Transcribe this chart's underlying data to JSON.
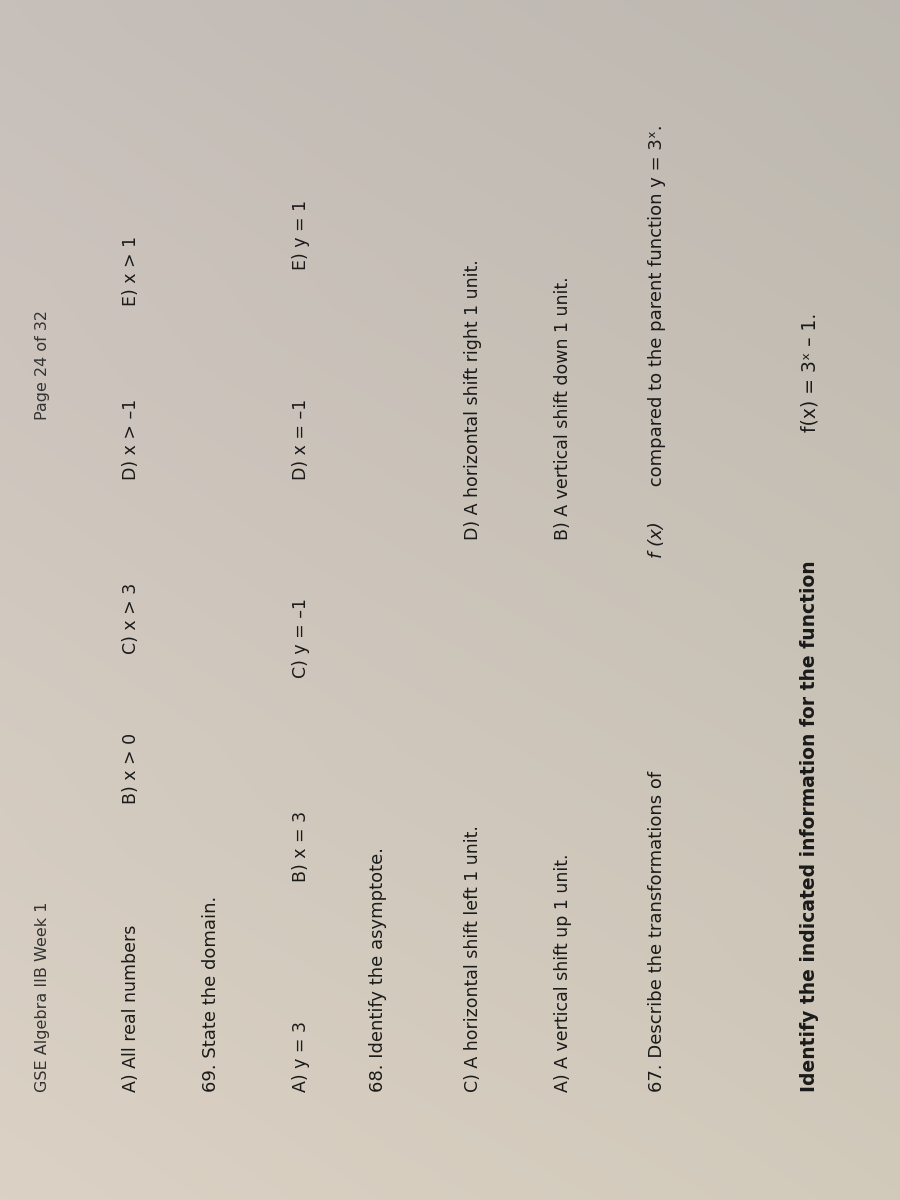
{
  "bg_color_tl": "#c8c4c0",
  "bg_color_tr": "#d0ccc8",
  "bg_color_bl": "#ddd5c8",
  "bg_color_br": "#cfc8c0",
  "text_color": "#1a1a1a",
  "rotation": 90,
  "title_bold": "Identify the indicated information for the function ",
  "title_func": "f(x) = 3ˣ – 1.",
  "q67_label": "67. Describe the transformations of ",
  "q67_func": "f (x)",
  "q67_rest": " compared to the parent function y = 3ˣ.",
  "q67_A": "A) A vertical shift up 1 unit.",
  "q67_B": "B) A vertical shift down 1 unit.",
  "q67_C": "C) A horizontal shift left 1 unit.",
  "q67_D": "D) A horizontal shift right 1 unit.",
  "q68_label": "68. Identify the asymptote.",
  "q68_A": "A) y = 3",
  "q68_B": "B) x = 3",
  "q68_C": "C) y = –1",
  "q68_D": "D) x = –1",
  "q68_E": "E) y = 1",
  "q69_label": "69. State the domain.",
  "q69_A": "A) All real numbers",
  "q69_B": "B) x > 0",
  "q69_C": "C) x > 3",
  "q69_D": "D) x > –1",
  "q69_E": "E) x > 1",
  "footer_left": "GSE Algebra IIB Week 1",
  "footer_right": "Page 24 of 32"
}
